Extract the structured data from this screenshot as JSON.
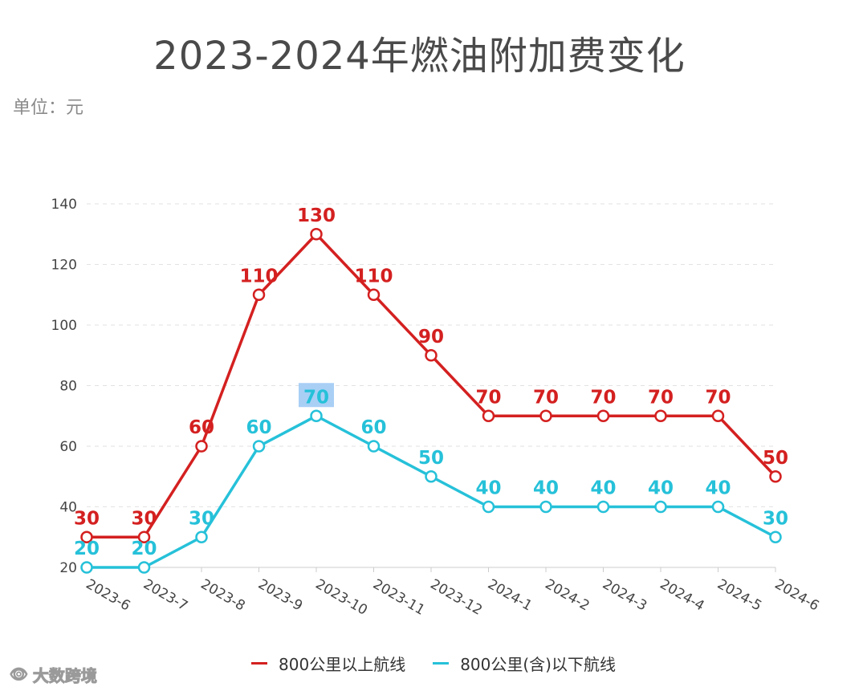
{
  "title": "2023-2024年燃油附加费变化",
  "unit_label": "单位：元",
  "watermark": "大数跨境",
  "watermark_icon": "eye-logo-icon",
  "chart_data": {
    "type": "line",
    "categories": [
      "2023-6",
      "2023-7",
      "2023-8",
      "2023-9",
      "2023-10",
      "2023-11",
      "2023-12",
      "2024-1",
      "2024-2",
      "2024-3",
      "2024-4",
      "2024-5",
      "2024-6"
    ],
    "series": [
      {
        "name": "800公里以上航线",
        "color": "#d42020",
        "values": [
          30,
          30,
          60,
          110,
          130,
          110,
          90,
          70,
          70,
          70,
          70,
          70,
          50
        ]
      },
      {
        "name": "800公里(含)以下航线",
        "color": "#26c1d9",
        "values": [
          20,
          20,
          30,
          60,
          70,
          60,
          50,
          40,
          40,
          40,
          40,
          40,
          30
        ]
      }
    ],
    "yticks": [
      20,
      40,
      60,
      80,
      100,
      120,
      140
    ],
    "ylim": [
      20,
      140
    ],
    "grid": true,
    "legend_position": "bottom-center",
    "highlighted_label": {
      "series": 1,
      "index": 4,
      "color": "#a9cff5"
    }
  }
}
